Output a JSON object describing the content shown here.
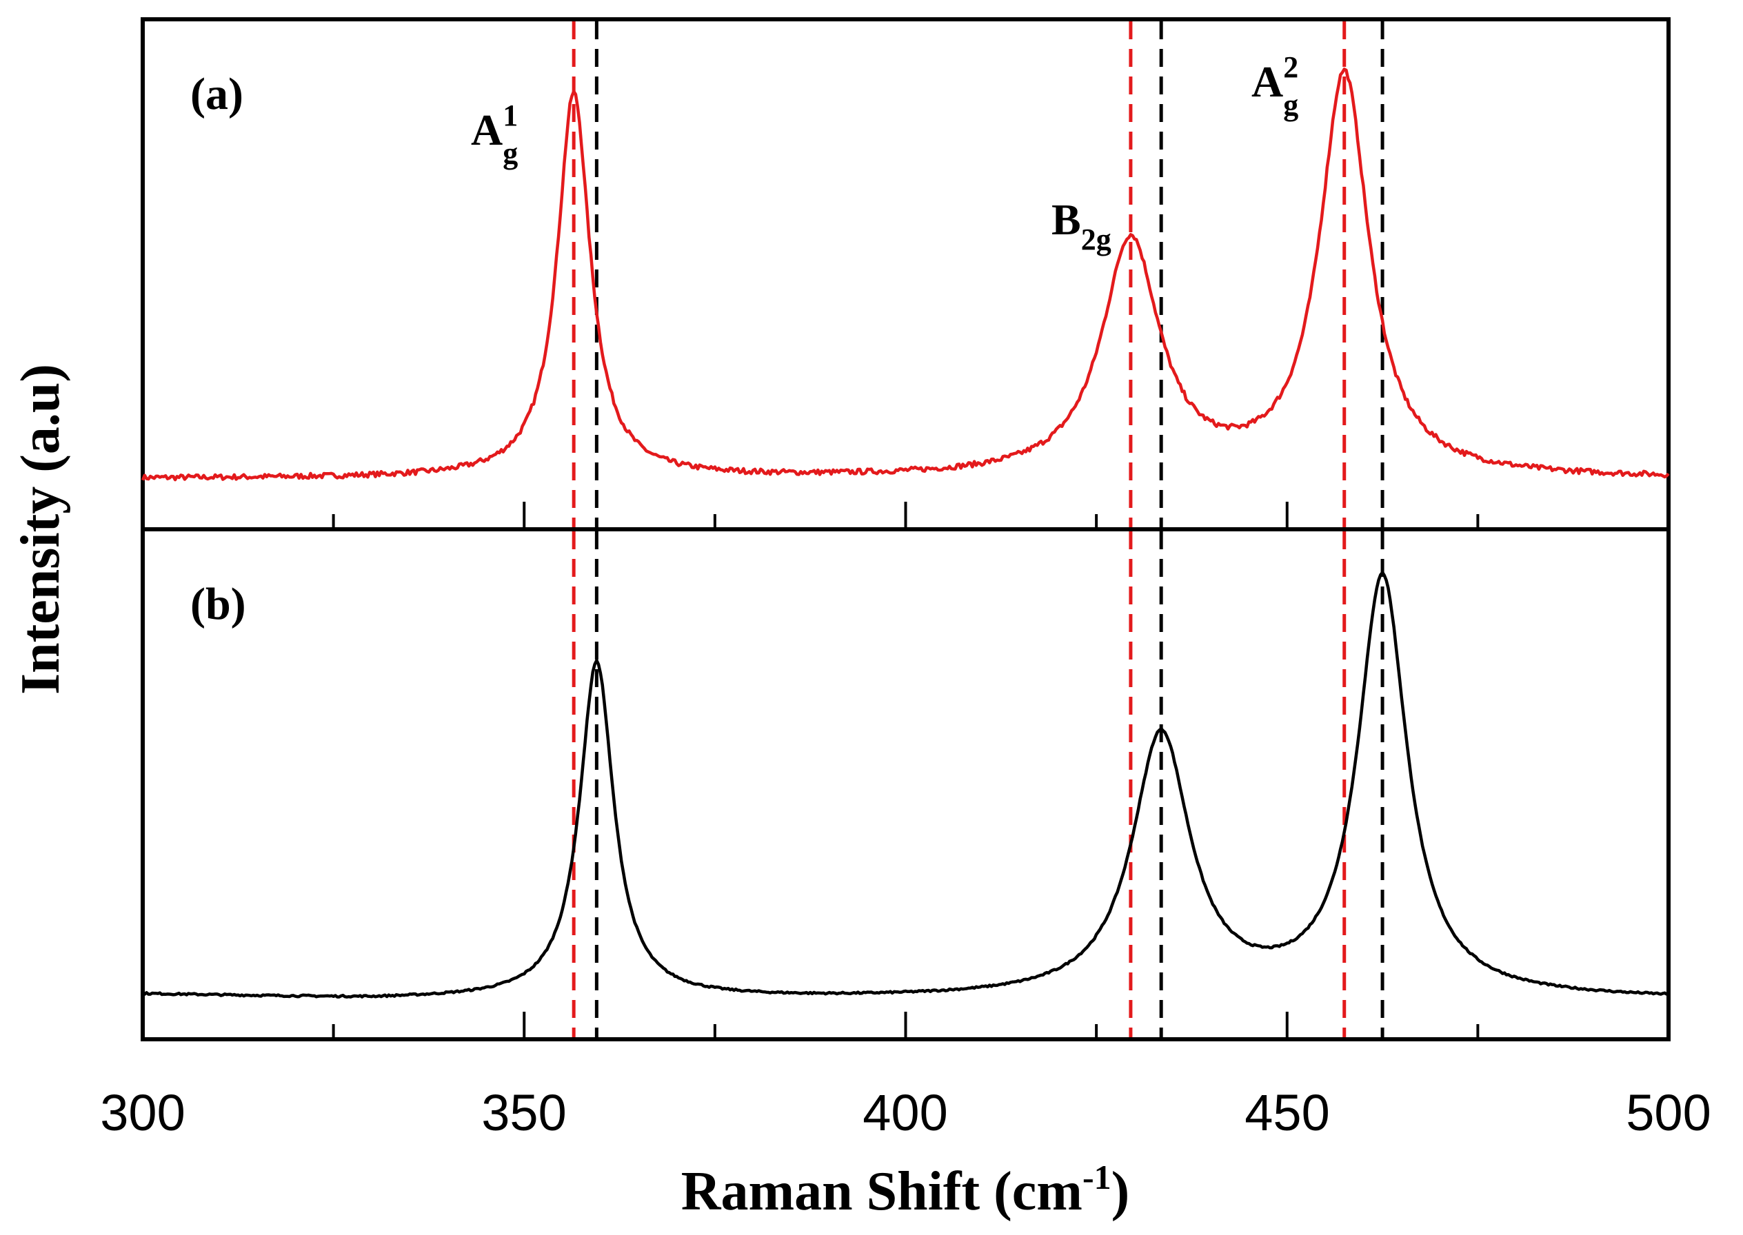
{
  "chart_data": {
    "type": "line",
    "xlabel": "Raman Shift (cm",
    "xlabel_sup": "-1",
    "xlabel_end": ")",
    "ylabel": "Intensity (a.u)",
    "xlim": [
      300,
      500
    ],
    "xticks": [
      "300",
      "350",
      "400",
      "450",
      "500"
    ],
    "colors": {
      "red": "#e31a1c",
      "black": "#000000"
    },
    "panels": [
      {
        "label": "(a)",
        "color": "#e31a1c",
        "baseline": 0.06,
        "peaks": [
          {
            "center": 356.5,
            "height": 0.88,
            "width": 2.6
          },
          {
            "center": 429.5,
            "height": 0.54,
            "width": 4.6
          },
          {
            "center": 457.5,
            "height": 0.92,
            "width": 3.9
          }
        ],
        "vlines": [
          {
            "x": 356.5,
            "color": "#e31a1c"
          },
          {
            "x": 359.5,
            "color": "#000000"
          },
          {
            "x": 429.5,
            "color": "#e31a1c"
          },
          {
            "x": 433.5,
            "color": "#000000"
          },
          {
            "x": 457.5,
            "color": "#e31a1c"
          },
          {
            "x": 462.5,
            "color": "#000000"
          }
        ]
      },
      {
        "label": "(b)",
        "color": "#000000",
        "baseline": 0.035,
        "peaks": [
          {
            "center": 359.5,
            "height": 0.77,
            "width": 2.7
          },
          {
            "center": 433.5,
            "height": 0.6,
            "width": 4.6
          },
          {
            "center": 462.5,
            "height": 0.96,
            "width": 3.9
          }
        ],
        "vlines": [
          {
            "x": 356.5,
            "color": "#e31a1c"
          },
          {
            "x": 359.5,
            "color": "#000000"
          },
          {
            "x": 429.5,
            "color": "#e31a1c"
          },
          {
            "x": 433.5,
            "color": "#000000"
          },
          {
            "x": 457.5,
            "color": "#e31a1c"
          },
          {
            "x": 462.5,
            "color": "#000000"
          }
        ]
      }
    ],
    "annotations": [
      {
        "main": "A",
        "sup": "1",
        "sub": "g",
        "panel": "(a)",
        "peak_x": 356.5
      },
      {
        "main": "B",
        "sup": "",
        "sub": "2g",
        "panel": "(a)",
        "peak_x": 429.5
      },
      {
        "main": "A",
        "sup": "2",
        "sub": "g",
        "panel": "(a)",
        "peak_x": 457.5
      }
    ]
  }
}
